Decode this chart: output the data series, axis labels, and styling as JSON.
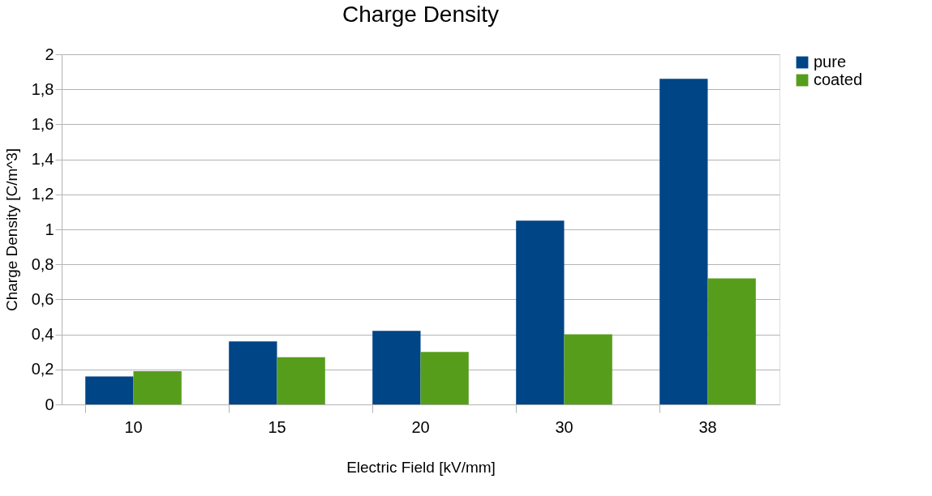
{
  "chart_data": {
    "type": "bar",
    "title": "Charge Density",
    "xlabel": "Electric Field [kV/mm]",
    "ylabel": "Charge Density [C/m^3]",
    "categories": [
      "10",
      "15",
      "20",
      "30",
      "38"
    ],
    "series": [
      {
        "name": "pure",
        "color": "#004586",
        "values": [
          0.16,
          0.36,
          0.42,
          1.05,
          1.86
        ]
      },
      {
        "name": "coated",
        "color": "#579d1c",
        "values": [
          0.19,
          0.27,
          0.3,
          0.4,
          0.72
        ]
      }
    ],
    "ylim": [
      0,
      2
    ],
    "yticks": [
      0,
      {
        "value": 0.2,
        "label": "0,2"
      },
      {
        "value": 0.4,
        "label": "0,4"
      },
      {
        "value": 0.6,
        "label": "0,6"
      },
      {
        "value": 0.8,
        "label": "0,8"
      },
      1,
      {
        "value": 1.2,
        "label": "1,2"
      },
      {
        "value": 1.4,
        "label": "1,4"
      },
      {
        "value": 1.6,
        "label": "1,6"
      },
      {
        "value": 1.8,
        "label": "1,8"
      },
      2
    ],
    "grid": "y",
    "legend": "right"
  }
}
